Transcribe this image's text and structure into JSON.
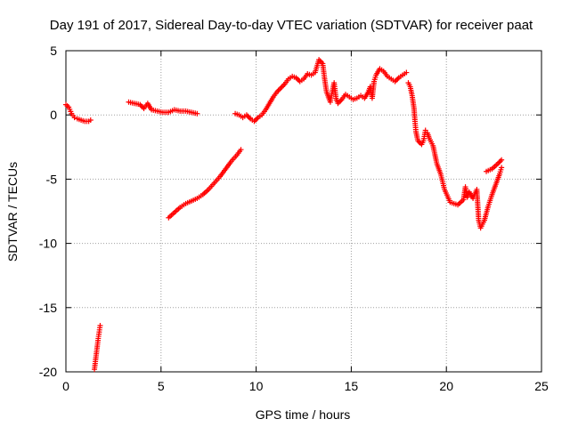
{
  "chart_data": {
    "type": "scatter",
    "title": "Day 191 of 2017, Sidereal Day-to-day VTEC variation (SDTVAR) for receiver paat",
    "xlabel": "GPS time / hours",
    "ylabel": "SDTVAR / TECUs",
    "xlim": [
      0,
      25
    ],
    "ylim": [
      -20,
      5
    ],
    "xticks": [
      0,
      5,
      10,
      15,
      20,
      25
    ],
    "yticks": [
      -20,
      -15,
      -10,
      -5,
      0,
      5
    ],
    "grid": true,
    "marker": "+",
    "color": "#ff0000",
    "segments": [
      [
        [
          0.0,
          0.8
        ],
        [
          0.15,
          0.6
        ],
        [
          0.3,
          0.1
        ],
        [
          0.45,
          -0.2
        ],
        [
          0.6,
          -0.3
        ],
        [
          0.8,
          -0.4
        ],
        [
          1.0,
          -0.5
        ],
        [
          1.2,
          -0.5
        ],
        [
          1.3,
          -0.4
        ]
      ],
      [
        [
          1.5,
          -19.8
        ],
        [
          1.55,
          -19.2
        ],
        [
          1.6,
          -18.6
        ],
        [
          1.65,
          -18.0
        ],
        [
          1.7,
          -17.4
        ],
        [
          1.75,
          -16.9
        ],
        [
          1.8,
          -16.4
        ]
      ],
      [
        [
          3.3,
          1.0
        ],
        [
          3.6,
          0.9
        ],
        [
          3.9,
          0.8
        ],
        [
          4.1,
          0.5
        ],
        [
          4.3,
          0.9
        ],
        [
          4.5,
          0.4
        ],
        [
          4.8,
          0.3
        ],
        [
          5.1,
          0.2
        ],
        [
          5.4,
          0.2
        ],
        [
          5.7,
          0.4
        ],
        [
          6.0,
          0.3
        ],
        [
          6.3,
          0.3
        ],
        [
          6.6,
          0.2
        ],
        [
          6.9,
          0.1
        ]
      ],
      [
        [
          5.4,
          -8.0
        ],
        [
          5.7,
          -7.6
        ],
        [
          6.0,
          -7.2
        ],
        [
          6.3,
          -6.9
        ],
        [
          6.6,
          -6.7
        ],
        [
          6.9,
          -6.5
        ],
        [
          7.2,
          -6.2
        ],
        [
          7.5,
          -5.8
        ],
        [
          7.8,
          -5.3
        ],
        [
          8.1,
          -4.8
        ],
        [
          8.4,
          -4.2
        ],
        [
          8.7,
          -3.6
        ],
        [
          9.0,
          -3.1
        ],
        [
          9.2,
          -2.7
        ]
      ],
      [
        [
          8.9,
          0.1
        ],
        [
          9.1,
          0.0
        ],
        [
          9.3,
          -0.2
        ],
        [
          9.5,
          0.0
        ],
        [
          9.7,
          -0.3
        ],
        [
          9.9,
          -0.5
        ],
        [
          10.1,
          -0.2
        ],
        [
          10.3,
          0.0
        ],
        [
          10.5,
          0.4
        ],
        [
          10.7,
          0.9
        ],
        [
          10.9,
          1.4
        ],
        [
          11.1,
          1.8
        ],
        [
          11.3,
          2.1
        ],
        [
          11.5,
          2.4
        ],
        [
          11.7,
          2.8
        ],
        [
          11.9,
          3.0
        ],
        [
          12.1,
          2.9
        ],
        [
          12.3,
          2.6
        ],
        [
          12.5,
          2.8
        ],
        [
          12.7,
          3.2
        ],
        [
          12.9,
          3.1
        ],
        [
          13.1,
          3.3
        ],
        [
          13.3,
          4.3
        ],
        [
          13.5,
          4.0
        ],
        [
          13.6,
          2.8
        ],
        [
          13.7,
          1.8
        ],
        [
          13.8,
          1.4
        ],
        [
          13.9,
          1.0
        ],
        [
          14.0,
          1.8
        ],
        [
          14.1,
          2.5
        ],
        [
          14.2,
          1.3
        ],
        [
          14.3,
          0.9
        ],
        [
          14.5,
          1.2
        ],
        [
          14.7,
          1.6
        ],
        [
          14.9,
          1.4
        ],
        [
          15.1,
          1.2
        ],
        [
          15.3,
          1.3
        ],
        [
          15.5,
          1.5
        ],
        [
          15.7,
          1.3
        ],
        [
          15.9,
          1.8
        ],
        [
          16.0,
          2.2
        ],
        [
          16.1,
          1.3
        ],
        [
          16.2,
          2.6
        ],
        [
          16.3,
          3.1
        ],
        [
          16.5,
          3.6
        ],
        [
          16.7,
          3.4
        ],
        [
          16.9,
          3.0
        ],
        [
          17.1,
          2.8
        ],
        [
          17.3,
          2.6
        ],
        [
          17.5,
          2.9
        ],
        [
          17.7,
          3.1
        ],
        [
          17.9,
          3.3
        ]
      ],
      [
        [
          18.0,
          2.5
        ],
        [
          18.1,
          2.2
        ],
        [
          18.2,
          1.5
        ],
        [
          18.3,
          0.5
        ],
        [
          18.35,
          -0.5
        ],
        [
          18.4,
          -1.3
        ],
        [
          18.5,
          -2.0
        ],
        [
          18.7,
          -2.3
        ],
        [
          18.8,
          -2.0
        ],
        [
          18.9,
          -1.2
        ],
        [
          19.0,
          -1.4
        ],
        [
          19.1,
          -1.8
        ],
        [
          19.3,
          -2.4
        ],
        [
          19.4,
          -3.1
        ],
        [
          19.5,
          -3.8
        ],
        [
          19.7,
          -4.6
        ],
        [
          19.9,
          -5.8
        ],
        [
          20.2,
          -6.8
        ],
        [
          20.6,
          -7.0
        ],
        [
          20.9,
          -6.6
        ],
        [
          21.0,
          -5.6
        ],
        [
          21.1,
          -6.4
        ],
        [
          21.2,
          -6.0
        ],
        [
          21.4,
          -6.5
        ],
        [
          21.6,
          -5.8
        ],
        [
          21.7,
          -8.2
        ],
        [
          21.8,
          -8.8
        ],
        [
          22.0,
          -8.2
        ],
        [
          22.2,
          -7.1
        ],
        [
          22.4,
          -6.2
        ],
        [
          22.6,
          -5.4
        ],
        [
          22.8,
          -4.6
        ],
        [
          22.9,
          -4.1
        ]
      ],
      [
        [
          22.1,
          -4.4
        ],
        [
          22.4,
          -4.2
        ],
        [
          22.7,
          -3.8
        ],
        [
          22.9,
          -3.5
        ]
      ]
    ]
  }
}
